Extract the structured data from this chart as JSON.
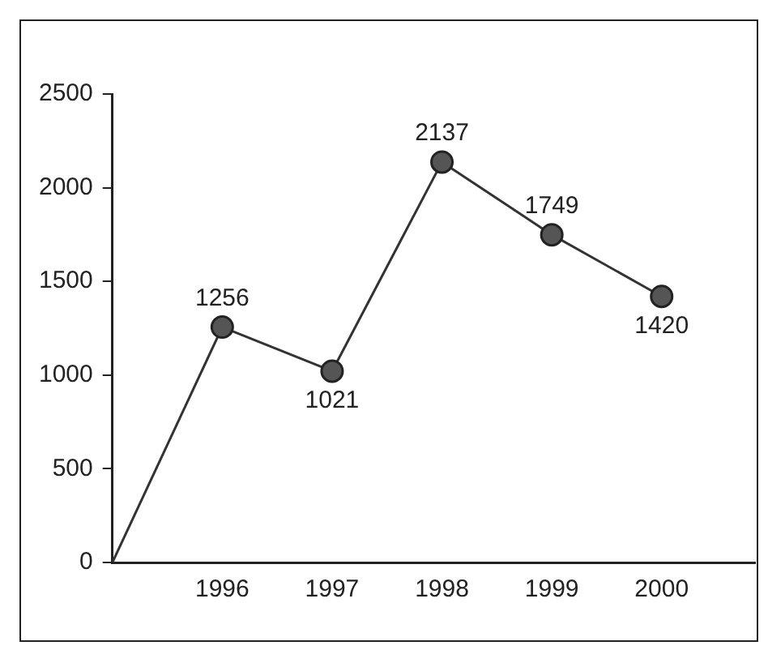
{
  "chart_data": {
    "type": "line",
    "x": [
      1995,
      1996,
      1997,
      1998,
      1999,
      2000
    ],
    "series": [
      {
        "color": "#333333",
        "values": [
          0,
          1256,
          1021,
          2137,
          1749,
          1420
        ],
        "value_labels": [
          null,
          "1256",
          "1021",
          "2137",
          "1749",
          "1420"
        ]
      }
    ],
    "xlim": [
      1995,
      2000.85
    ],
    "xticks": [
      1996,
      1997,
      1998,
      1999,
      2000
    ],
    "ylim": [
      0,
      2500
    ],
    "yticks": [
      0,
      500,
      1000,
      1500,
      2000,
      2500
    ],
    "grid": false,
    "legend": false,
    "marker": "circle",
    "line_style": "solid"
  }
}
